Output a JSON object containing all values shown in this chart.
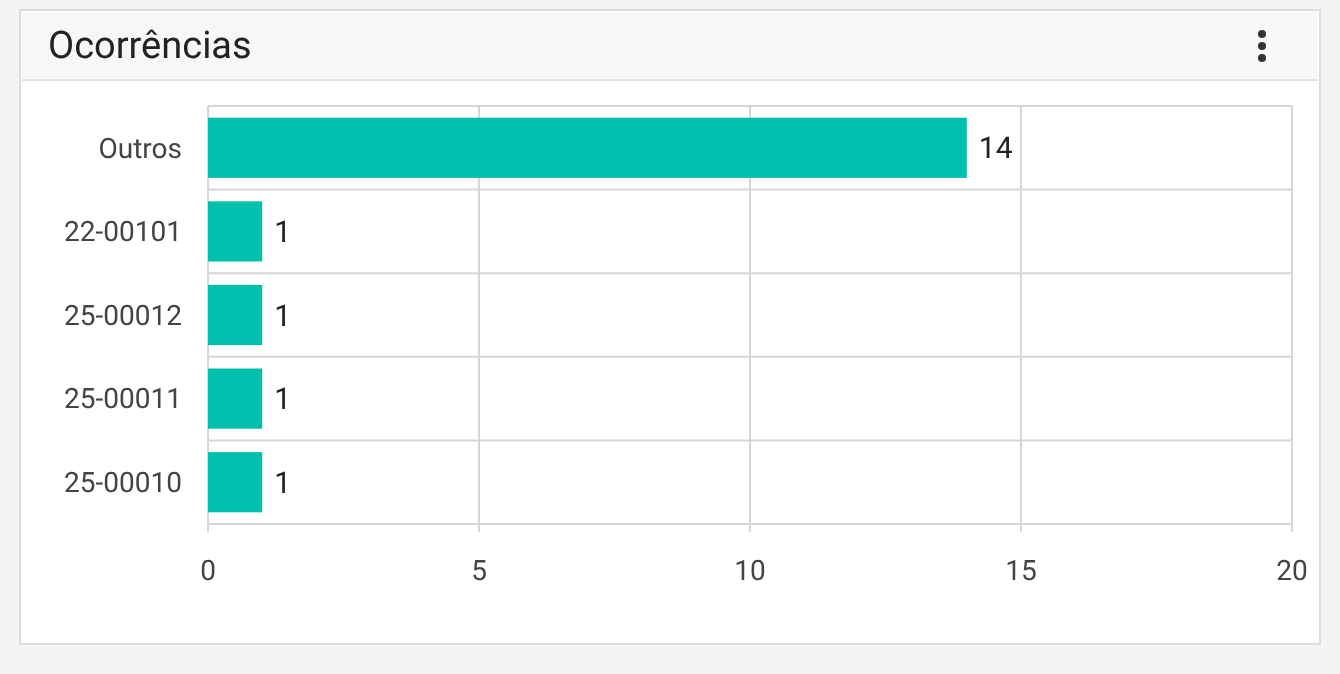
{
  "chart_data": {
    "type": "bar",
    "title": "Ocorrências",
    "orientation": "horizontal",
    "categories": [
      "Outros",
      "22-00101",
      "25-00012",
      "25-00011",
      "25-00010"
    ],
    "values": [
      14,
      1,
      1,
      1,
      1
    ],
    "color": "#00bfad",
    "xlim": [
      0,
      20
    ],
    "xticks": [
      0,
      5,
      10,
      15,
      20
    ],
    "grid": true,
    "data_labels": true
  }
}
